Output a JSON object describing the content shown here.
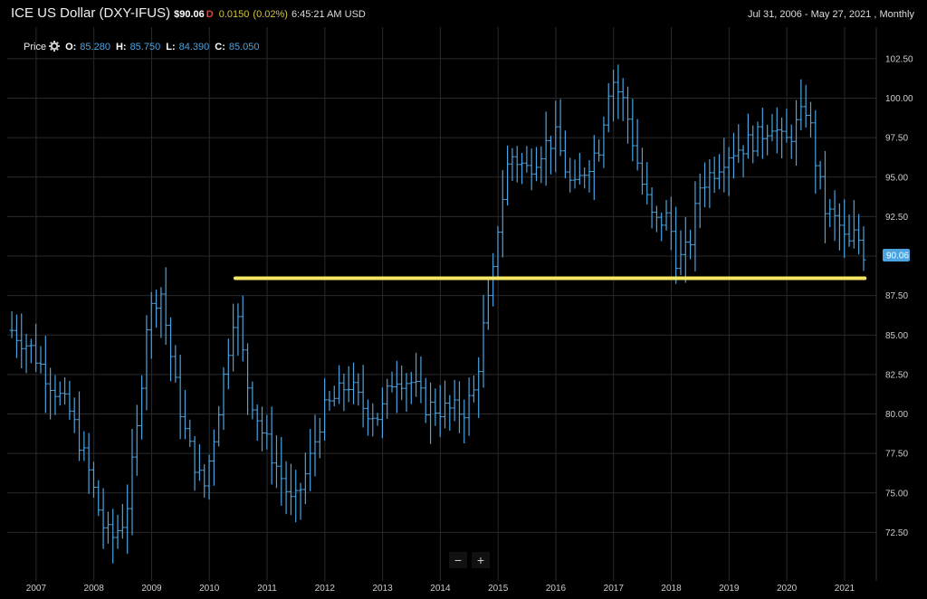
{
  "header": {
    "title": "ICE US Dollar (DXY-IFUS)",
    "price": "$90.06",
    "direction": "D",
    "change": "0.0150",
    "change_pct": "(0.02%)",
    "time": "6:45:21 AM USD",
    "range": "Jul 31, 2006 - May 27, 2021 , Monthly"
  },
  "ohlc": {
    "label": "Price",
    "o_label": "O:",
    "o_value": "85.280",
    "h_label": "H:",
    "h_value": "85.750",
    "l_label": "L:",
    "l_value": "84.390",
    "c_label": "C:",
    "c_value": "85.050"
  },
  "zoom": {
    "minus": "−",
    "plus": "+"
  },
  "colors": {
    "bars": "#4ba3e0",
    "grid": "#2a2a2a",
    "annotation": "#f5e663",
    "tag_bg": "#4ba3e0"
  },
  "icons": {
    "settings": "gear-icon"
  },
  "chart_data": {
    "type": "ohlc",
    "x_ticks": [
      "2007",
      "2008",
      "2009",
      "2010",
      "2011",
      "2012",
      "2013",
      "2014",
      "2015",
      "2016",
      "2017",
      "2018",
      "2019",
      "2020",
      "2021"
    ],
    "y_ticks": [
      "72.50",
      "75.00",
      "77.50",
      "80.00",
      "82.50",
      "85.00",
      "87.50",
      "90.00",
      "92.50",
      "95.00",
      "97.50",
      "100.00",
      "102.50"
    ],
    "ylim": [
      70.0,
      104.5
    ],
    "last_price_label": "90.06",
    "last_price": 90.06,
    "annotation": {
      "type": "horizontal-line",
      "y": 88.6,
      "from": "2010.45",
      "to": "2021.35"
    },
    "anchors": [
      [
        2006.58,
        85.3
      ],
      [
        2006.9,
        84.2
      ],
      [
        2007.25,
        82.0
      ],
      [
        2007.6,
        80.0
      ],
      [
        2007.9,
        76.5
      ],
      [
        2008.15,
        73.0
      ],
      [
        2008.3,
        72.0
      ],
      [
        2008.55,
        73.5
      ],
      [
        2008.75,
        79.0
      ],
      [
        2008.92,
        86.0
      ],
      [
        2009.15,
        88.0
      ],
      [
        2009.4,
        82.0
      ],
      [
        2009.6,
        78.5
      ],
      [
        2009.9,
        75.2
      ],
      [
        2010.1,
        79.0
      ],
      [
        2010.45,
        87.0
      ],
      [
        2010.65,
        82.0
      ],
      [
        2010.9,
        79.0
      ],
      [
        2011.3,
        75.5
      ],
      [
        2011.45,
        74.0
      ],
      [
        2011.7,
        76.5
      ],
      [
        2011.95,
        80.0
      ],
      [
        2012.4,
        82.0
      ],
      [
        2012.65,
        80.5
      ],
      [
        2012.95,
        79.8
      ],
      [
        2013.2,
        82.5
      ],
      [
        2013.5,
        82.0
      ],
      [
        2013.75,
        80.5
      ],
      [
        2014.0,
        80.3
      ],
      [
        2014.4,
        80.2
      ],
      [
        2014.6,
        81.5
      ],
      [
        2014.75,
        85.5
      ],
      [
        2014.9,
        88.3
      ],
      [
        2015.0,
        92.0
      ],
      [
        2015.2,
        96.5
      ],
      [
        2015.5,
        95.5
      ],
      [
        2015.8,
        97.0
      ],
      [
        2016.0,
        97.5
      ],
      [
        2016.3,
        94.0
      ],
      [
        2016.5,
        95.5
      ],
      [
        2016.75,
        97.0
      ],
      [
        2016.95,
        101.5
      ],
      [
        2017.2,
        99.5
      ],
      [
        2017.5,
        94.5
      ],
      [
        2017.7,
        92.0
      ],
      [
        2017.95,
        92.5
      ],
      [
        2018.1,
        89.5
      ],
      [
        2018.3,
        90.5
      ],
      [
        2018.5,
        94.5
      ],
      [
        2018.75,
        95.5
      ],
      [
        2018.95,
        96.5
      ],
      [
        2019.25,
        97.0
      ],
      [
        2019.5,
        97.5
      ],
      [
        2019.75,
        98.5
      ],
      [
        2019.95,
        97.0
      ],
      [
        2020.2,
        98.5
      ],
      [
        2020.35,
        99.5
      ],
      [
        2020.5,
        96.0
      ],
      [
        2020.65,
        93.0
      ],
      [
        2020.9,
        92.0
      ],
      [
        2021.05,
        90.5
      ],
      [
        2021.2,
        91.5
      ],
      [
        2021.35,
        90.06
      ]
    ]
  }
}
